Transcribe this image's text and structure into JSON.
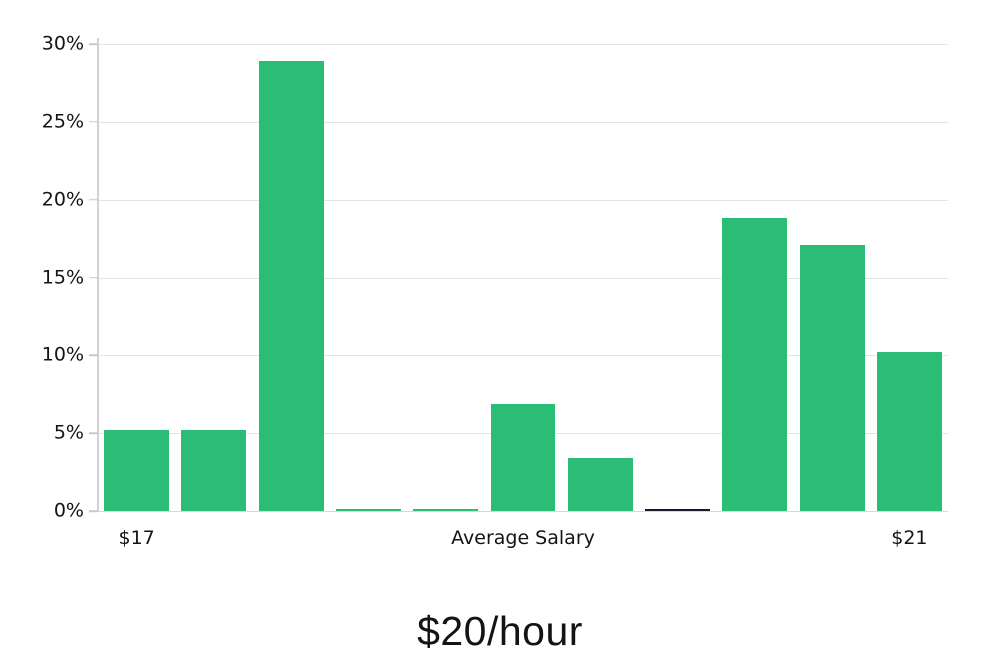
{
  "chart_data": {
    "type": "bar",
    "title": "$20/hour",
    "n_bars": 11,
    "categories": [
      "$17",
      "",
      "",
      "",
      "",
      "Average Salary",
      "",
      "",
      "",
      "",
      "$21"
    ],
    "values": [
      5.2,
      5.2,
      28.9,
      0.1,
      0.1,
      6.9,
      3.4,
      0.1,
      18.8,
      17.1,
      10.2
    ],
    "highlight_index": 7,
    "x_ticks": [
      {
        "index": 0,
        "label": "$17"
      },
      {
        "index": 5,
        "label": "Average Salary"
      },
      {
        "index": 10,
        "label": "$21"
      }
    ],
    "y_tick_values": [
      0,
      5,
      10,
      15,
      20,
      25,
      30
    ],
    "y_tick_labels": [
      "0%",
      "5%",
      "10%",
      "15%",
      "20%",
      "25%",
      "30%"
    ],
    "ylim": [
      0,
      30
    ],
    "grid": true,
    "legend": "none",
    "bar_width_ratio": 0.84,
    "colors": {
      "bar": "#2bbc75",
      "bar_highlight": "#141a2e",
      "gridline": "#e4e4e4",
      "axis_line": "#d2d2d2",
      "tick_mark": "#c9c9c9",
      "text": "#141414",
      "background": "#ffffff"
    }
  }
}
